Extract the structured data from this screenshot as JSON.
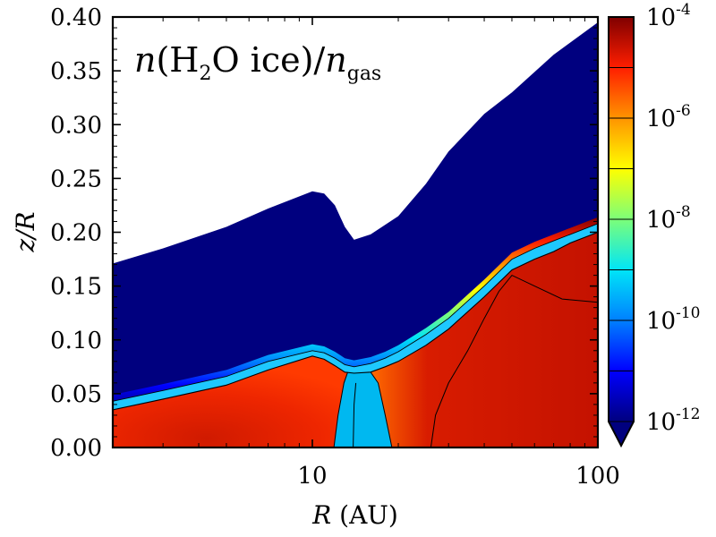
{
  "chart_data": {
    "type": "heatmap",
    "quantity": "n(H2O ice)/n_gas",
    "annotation": {
      "n": "n",
      "open": "(H",
      "sub2": "2",
      "rest": "O ice)/",
      "n2": "n",
      "sub_gas": "gas"
    },
    "xlabel": {
      "var": "R",
      "unit": "(AU)"
    },
    "ylabel": "z/R",
    "xscale": "log",
    "xlim": [
      2,
      100
    ],
    "ylim": [
      0.0,
      0.4
    ],
    "x_tick_labels": [
      {
        "value": 10,
        "label": "10"
      },
      {
        "value": 100,
        "label": "100"
      }
    ],
    "y_ticks": [
      0.0,
      0.05,
      0.1,
      0.15,
      0.2,
      0.25,
      0.3,
      0.35,
      0.4
    ],
    "y_tick_labels": [
      "0.00",
      "0.05",
      "0.10",
      "0.15",
      "0.20",
      "0.25",
      "0.30",
      "0.35",
      "0.40"
    ],
    "colorbar": {
      "scale": "log",
      "range": [
        1e-12,
        0.0001
      ],
      "colormap": [
        "#00007f",
        "#0000ff",
        "#0080ff",
        "#00e5f7",
        "#7cff79",
        "#ffff00",
        "#ff9400",
        "#ff1e00",
        "#7f0000"
      ],
      "labels": [
        {
          "value": 1e-12,
          "base": "10",
          "exp": "-12"
        },
        {
          "value": 1e-10,
          "base": "10",
          "exp": "-10"
        },
        {
          "value": 1e-08,
          "base": "10",
          "exp": "-8"
        },
        {
          "value": 1e-06,
          "base": "10",
          "exp": "-6"
        },
        {
          "value": 0.0001,
          "base": "10",
          "exp": "-4"
        }
      ]
    },
    "disk_surface": [
      [
        2,
        0.171
      ],
      [
        3,
        0.185
      ],
      [
        5,
        0.205
      ],
      [
        7,
        0.222
      ],
      [
        10,
        0.238
      ],
      [
        11,
        0.236
      ],
      [
        12,
        0.225
      ],
      [
        13,
        0.205
      ],
      [
        14,
        0.193
      ],
      [
        16,
        0.198
      ],
      [
        20,
        0.215
      ],
      [
        25,
        0.245
      ],
      [
        30,
        0.275
      ],
      [
        40,
        0.31
      ],
      [
        50,
        0.33
      ],
      [
        70,
        0.365
      ],
      [
        100,
        0.395
      ]
    ],
    "ice_front_lower": [
      [
        2,
        0.035
      ],
      [
        3,
        0.045
      ],
      [
        5,
        0.058
      ],
      [
        7,
        0.072
      ],
      [
        10,
        0.085
      ],
      [
        11,
        0.082
      ],
      [
        12,
        0.076
      ],
      [
        13,
        0.07
      ],
      [
        14,
        0.069
      ],
      [
        16,
        0.07
      ],
      [
        18,
        0.075
      ],
      [
        20,
        0.08
      ],
      [
        25,
        0.095
      ],
      [
        30,
        0.11
      ],
      [
        40,
        0.14
      ],
      [
        50,
        0.165
      ],
      [
        60,
        0.175
      ],
      [
        70,
        0.182
      ],
      [
        80,
        0.19
      ],
      [
        100,
        0.2
      ]
    ],
    "ice_front_upper": [
      [
        2,
        0.043
      ],
      [
        3,
        0.053
      ],
      [
        5,
        0.066
      ],
      [
        7,
        0.08
      ],
      [
        10,
        0.09
      ],
      [
        11,
        0.088
      ],
      [
        12,
        0.083
      ],
      [
        13,
        0.077
      ],
      [
        14,
        0.075
      ],
      [
        16,
        0.078
      ],
      [
        18,
        0.083
      ],
      [
        20,
        0.089
      ],
      [
        25,
        0.105
      ],
      [
        30,
        0.12
      ],
      [
        40,
        0.15
      ],
      [
        50,
        0.175
      ],
      [
        60,
        0.185
      ],
      [
        70,
        0.192
      ],
      [
        80,
        0.198
      ],
      [
        100,
        0.208
      ]
    ],
    "depletion_inner_edge": [
      [
        11.9,
        0.0
      ],
      [
        12.3,
        0.03
      ],
      [
        12.9,
        0.06
      ],
      [
        13.3,
        0.07
      ]
    ],
    "depletion_center": [
      [
        13.9,
        0.0
      ],
      [
        14.0,
        0.04
      ],
      [
        14.2,
        0.06
      ]
    ],
    "depletion_outer_edge": [
      [
        19.0,
        0.0
      ],
      [
        18.0,
        0.03
      ],
      [
        17.0,
        0.06
      ],
      [
        16.0,
        0.07
      ]
    ],
    "outer_hot_region": [
      [
        26,
        0.0
      ],
      [
        27,
        0.03
      ],
      [
        30,
        0.06
      ],
      [
        35,
        0.09
      ],
      [
        40,
        0.12
      ],
      [
        45,
        0.145
      ],
      [
        50,
        0.16
      ],
      [
        60,
        0.15
      ],
      [
        75,
        0.138
      ],
      [
        100,
        0.135
      ]
    ]
  }
}
